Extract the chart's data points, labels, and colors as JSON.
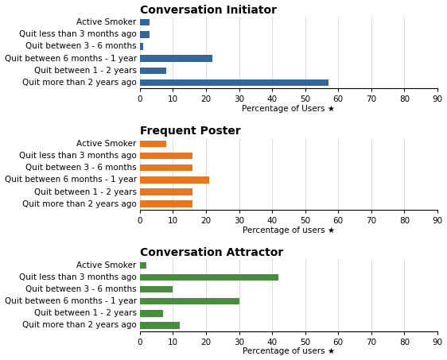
{
  "charts": [
    {
      "title": "Conversation Initiator",
      "xlabel": "Percentage of Users ★",
      "color": "#336699",
      "values": [
        3,
        3,
        1,
        22,
        8,
        57
      ]
    },
    {
      "title": "Frequent Poster",
      "xlabel": "Percentage of users ★",
      "color": "#E87722",
      "values": [
        8,
        16,
        16,
        21,
        16,
        16
      ]
    },
    {
      "title": "Conversation Attractor",
      "xlabel": "Percentage of users ★",
      "color": "#4a8c3f",
      "values": [
        2,
        42,
        10,
        30,
        7,
        12
      ]
    }
  ],
  "categories": [
    "Active Smoker",
    "Quit less than 3 months ago",
    "Quit between 3 - 6 months",
    "Quit between 6 months - 1 year",
    "Quit between 1 - 2 years",
    "Quit more than 2 years ago"
  ],
  "xlim": [
    0,
    90
  ],
  "xticks": [
    0,
    10,
    20,
    30,
    40,
    50,
    60,
    70,
    80,
    90
  ],
  "background_color": "#ffffff",
  "title_fontsize": 10,
  "label_fontsize": 7.5,
  "tick_fontsize": 7.5
}
